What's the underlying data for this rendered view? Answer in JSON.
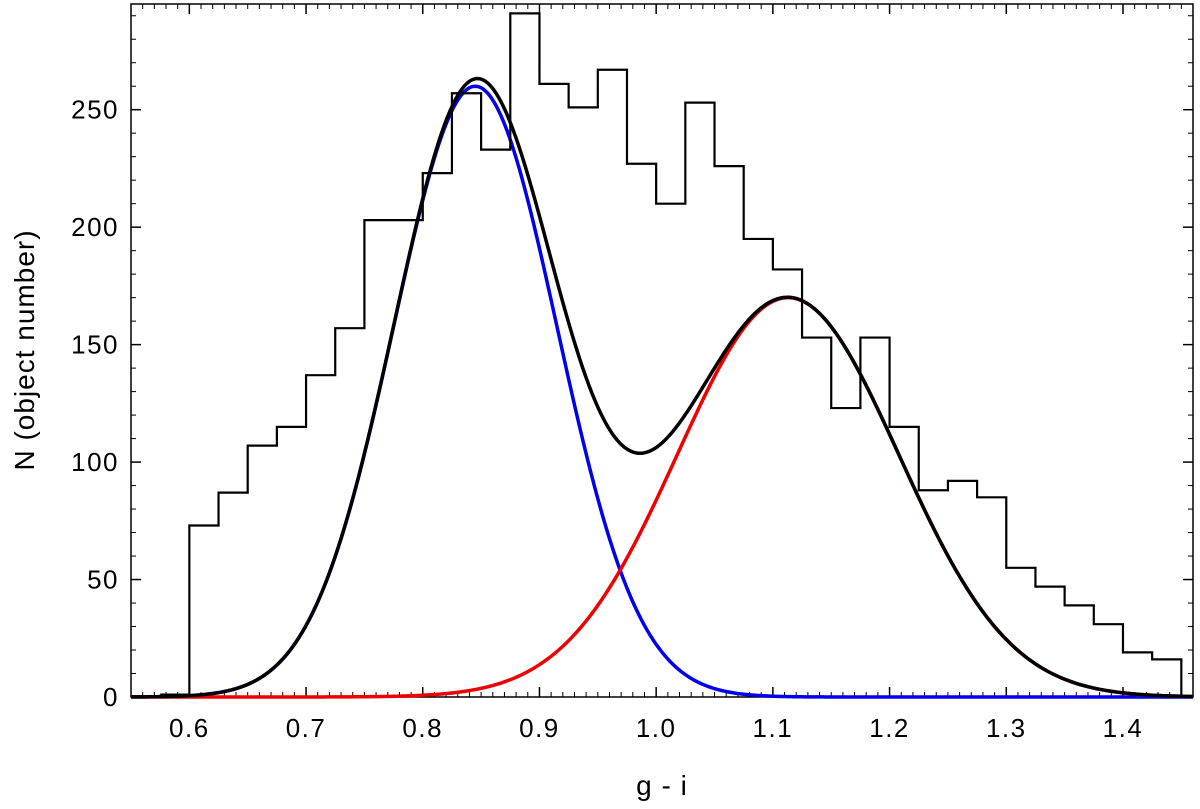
{
  "chart_data": {
    "type": "histogram",
    "title": "",
    "xlabel": "g - i",
    "ylabel": "N (object number)",
    "xlim": [
      0.55,
      1.46
    ],
    "ylim": [
      0,
      295
    ],
    "x_ticks": [
      0.6,
      0.7,
      0.8,
      0.9,
      1.0,
      1.1,
      1.2,
      1.3,
      1.4
    ],
    "x_tick_labels": [
      "0.6",
      "0.7",
      "0.8",
      "0.9",
      "1.0",
      "1.1",
      "1.2",
      "1.3",
      "1.4"
    ],
    "y_ticks": [
      0,
      50,
      100,
      150,
      200,
      250
    ],
    "y_tick_labels": [
      "0",
      "50",
      "100",
      "150",
      "200",
      "250"
    ],
    "grid": false,
    "histogram": {
      "bin_width": 0.025,
      "bin_left_edges": [
        0.575,
        0.6,
        0.625,
        0.65,
        0.675,
        0.7,
        0.725,
        0.75,
        0.775,
        0.8,
        0.825,
        0.85,
        0.875,
        0.9,
        0.925,
        0.95,
        0.975,
        1.0,
        1.025,
        1.05,
        1.075,
        1.1,
        1.125,
        1.15,
        1.175,
        1.2,
        1.225,
        1.25,
        1.275,
        1.3,
        1.325,
        1.35,
        1.375,
        1.4,
        1.425,
        1.45
      ],
      "counts": [
        1,
        73,
        87,
        107,
        115,
        137,
        157,
        203,
        203,
        223,
        257,
        233,
        291,
        261,
        251,
        267,
        227,
        210,
        253,
        226,
        195,
        182,
        153,
        123,
        153,
        115,
        88,
        92,
        85,
        55,
        47,
        39,
        31,
        19,
        16,
        0
      ],
      "color": "#000000"
    },
    "curves": [
      {
        "name": "",
        "model": "gaussian",
        "amplitude": 260,
        "mean": 0.845,
        "sigma": 0.07,
        "color": "#0000ee"
      },
      {
        "name": "",
        "model": "gaussian",
        "amplitude": 170,
        "mean": 1.113,
        "sigma": 0.095,
        "color": "#ee0000"
      },
      {
        "name": "",
        "model": "sum",
        "components": [
          0,
          1
        ],
        "color": "#000000"
      }
    ]
  }
}
